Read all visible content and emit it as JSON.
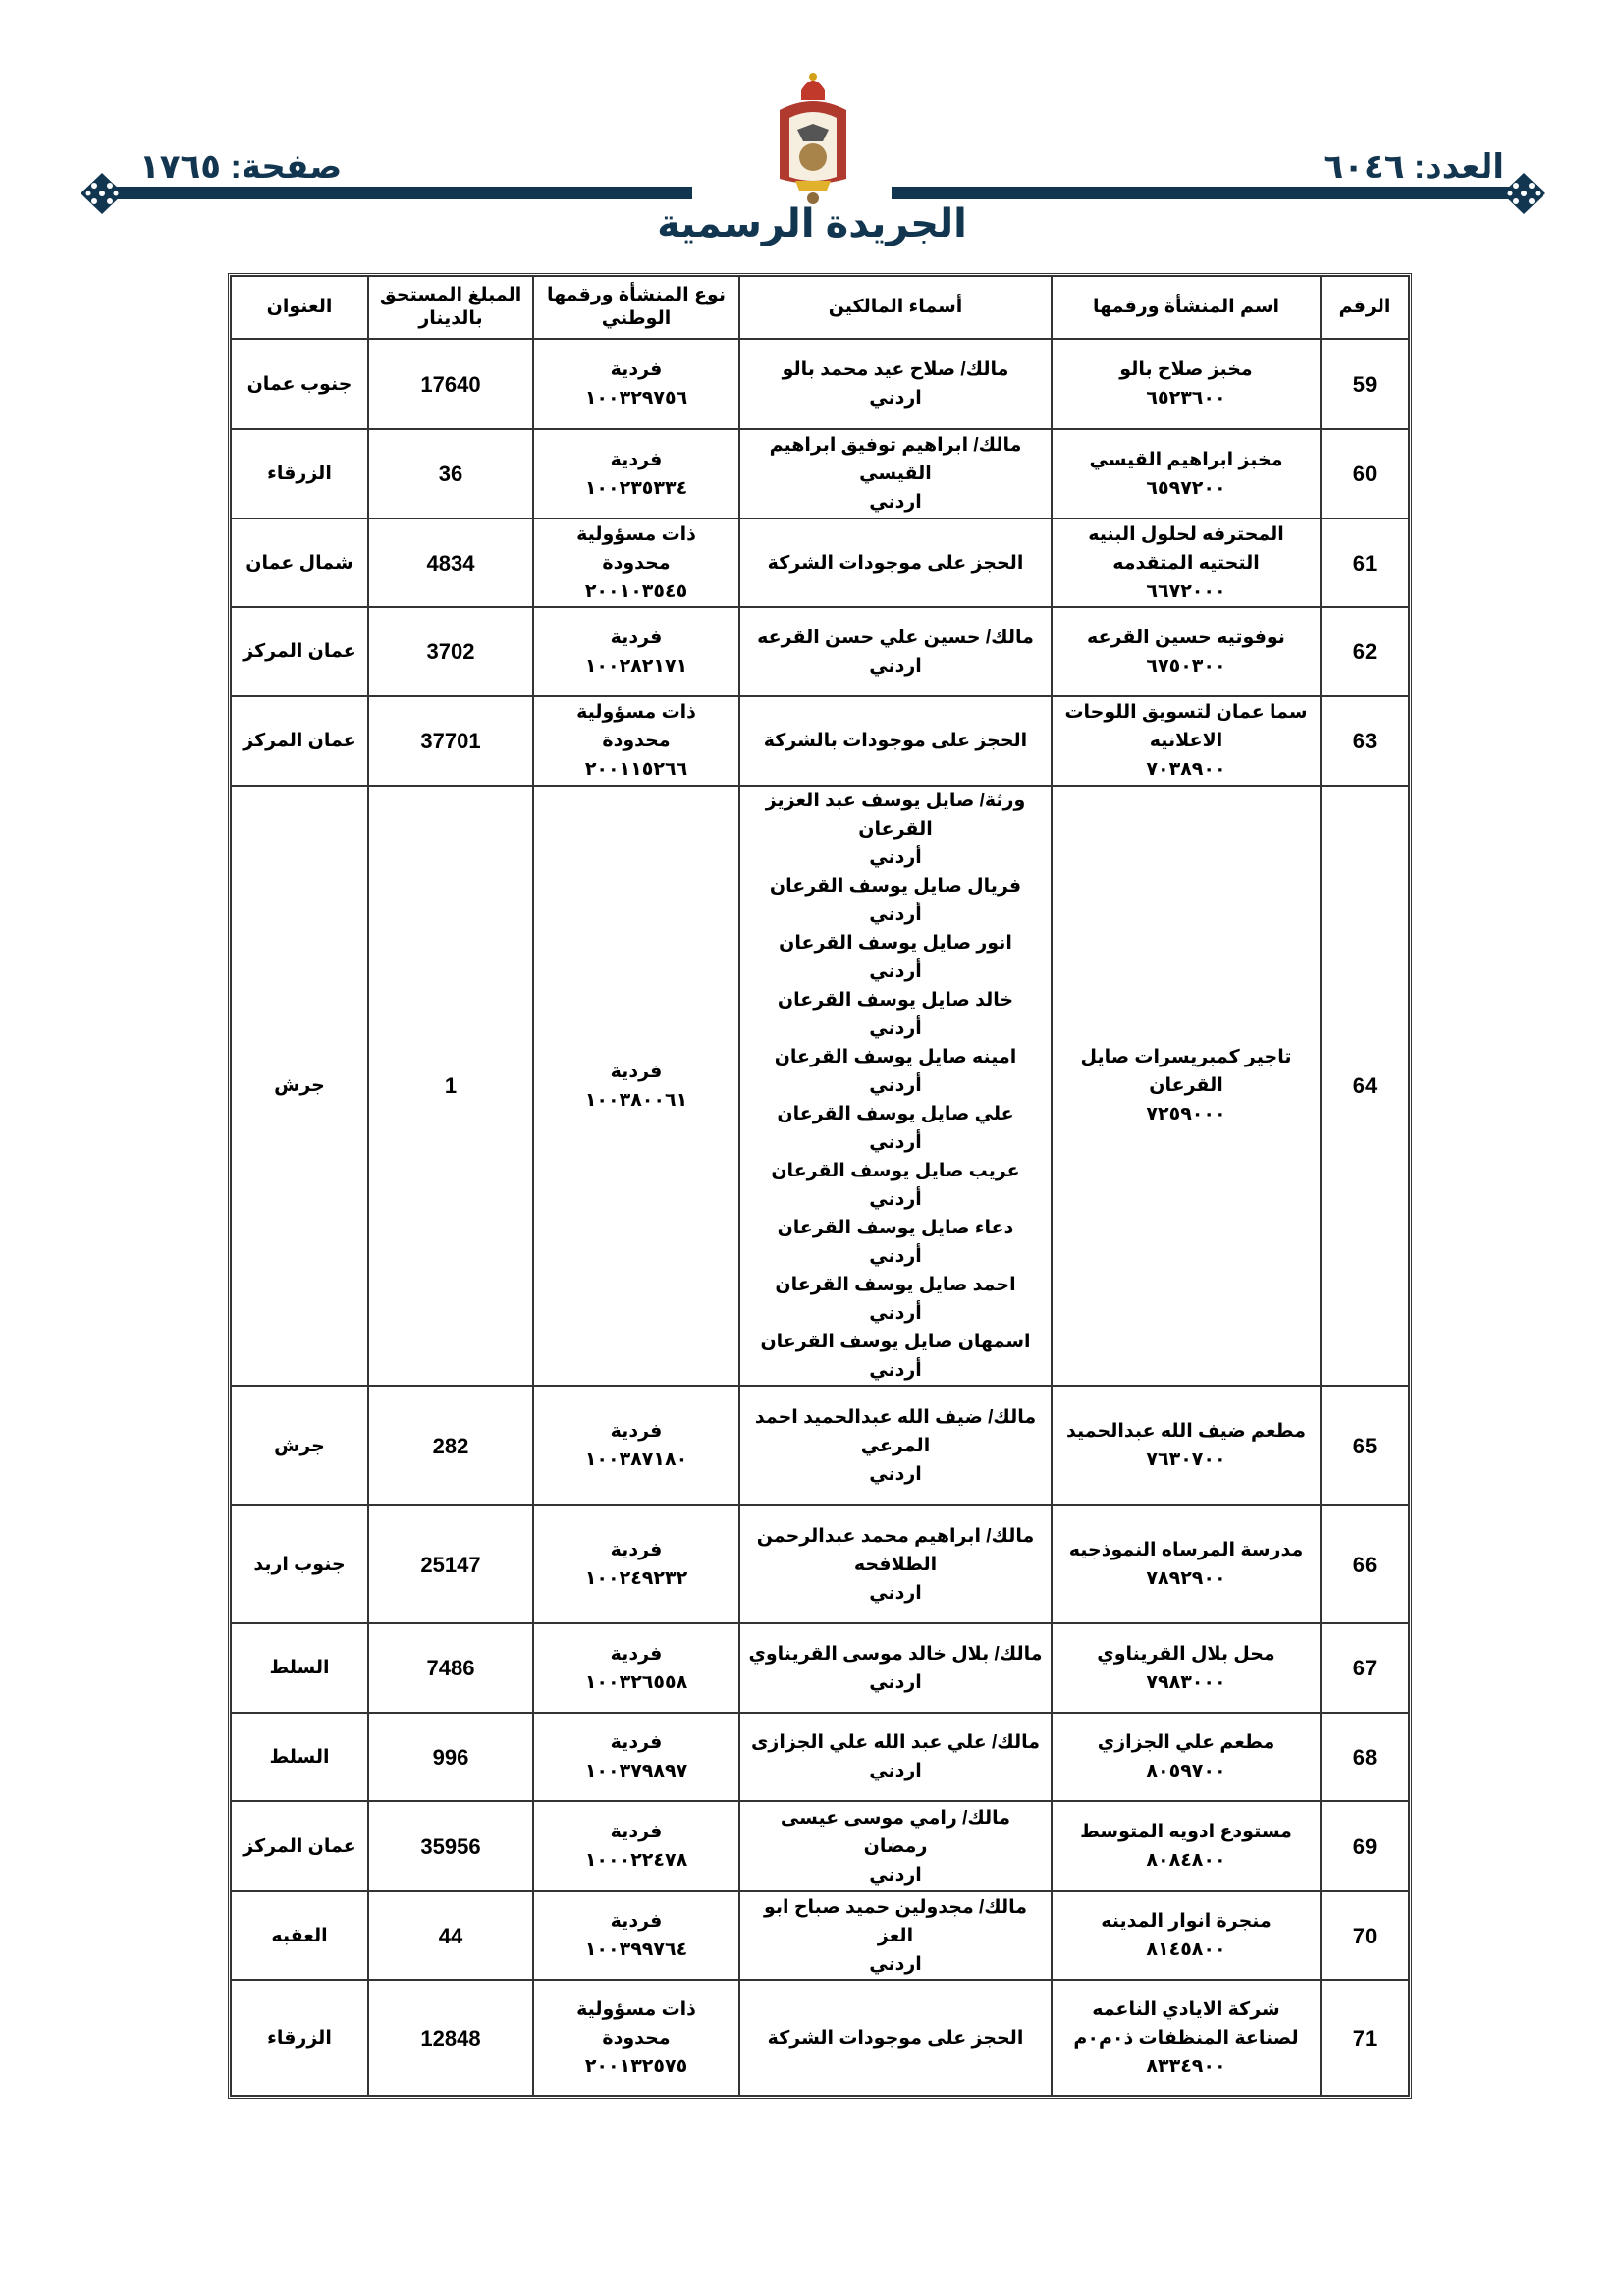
{
  "header": {
    "issue": "العدد: ٦٠٤٦",
    "page": "صفحة: ١٧٦٥",
    "title": "الجريدة الرسمية"
  },
  "colors": {
    "accent": "#123650"
  },
  "table": {
    "columns": [
      "الرقم",
      "اسم المنشأة ورقمها",
      "أسماء المالكين",
      "نوع المنشأة ورقمها الوطني",
      "المبلغ المستحق بالدينار",
      "العنوان"
    ],
    "rows": [
      {
        "no": "59",
        "name": "مخبز صلاح بالو\n٦٥٢٣٦٠٠",
        "owners": "مالك/ صلاح عيد محمد بالو\nاردني",
        "type": "فردية\n١٠٠٣٢٩٧٥٦",
        "amount": "17640",
        "address": "جنوب عمان"
      },
      {
        "no": "60",
        "name": "مخبز ابراهيم القيسي\n٦٥٩٧٢٠٠",
        "owners": "مالك/ ابراهيم توفيق ابراهيم القيسي\nاردني",
        "type": "فردية\n١٠٠٢٣٥٣٣٤",
        "amount": "36",
        "address": "الزرقاء"
      },
      {
        "no": "61",
        "name": "المحترفه لحلول البنيه التحتيه المتقدمه\n٦٦٧٢٠٠٠",
        "owners": "الحجز على موجودات الشركة",
        "type": "ذات مسؤولية محدودة\n٢٠٠١٠٣٥٤٥",
        "amount": "4834",
        "address": "شمال عمان"
      },
      {
        "no": "62",
        "name": "نوفوتيه حسين القرعه\n٦٧٥٠٣٠٠",
        "owners": "مالك/ حسين علي حسن القرعه\nاردني",
        "type": "فردية\n١٠٠٢٨٢١٧١",
        "amount": "3702",
        "address": "عمان المركز"
      },
      {
        "no": "63",
        "name": "سما عمان لتسويق اللوحات الاعلانيه\n٧٠٣٨٩٠٠",
        "owners": "الحجز على موجودات بالشركة",
        "type": "ذات مسؤولية محدودة\n٢٠٠١١٥٢٦٦",
        "amount": "37701",
        "address": "عمان المركز"
      },
      {
        "no": "64",
        "name": "تاجير كمبريسرات صايل القرعان\n٧٢٥٩٠٠٠",
        "owners": "ورثة/ صايل يوسف عبد العزيز القرعان\nأردني\nفريال صايل يوسف القرعان\nأردني\nانور صايل يوسف القرعان\nأردني\nخالد صايل يوسف القرعان\nأردني\nامينه صايل يوسف القرعان\nأردني\nعلي صايل يوسف القرعان\nأردني\nعريب صايل يوسف القرعان\nأردني\nدعاء صايل يوسف القرعان\nأردني\nاحمد صايل يوسف القرعان\nأردني\nاسمهان صايل يوسف القرعان\nأردني",
        "type": "فردية\n١٠٠٣٨٠٠٦١",
        "amount": "1",
        "address": "جرش"
      },
      {
        "no": "65",
        "name": "مطعم ضيف الله عبدالحميد\n٧٦٣٠٧٠٠",
        "owners": "مالك/ ضيف الله عبدالحميد احمد المرعي\nاردني",
        "type": "فردية\n١٠٠٣٨٧١٨٠",
        "amount": "282",
        "address": "جرش"
      },
      {
        "no": "66",
        "name": "مدرسة المرساه النموذجيه\n٧٨٩٢٩٠٠",
        "owners": "مالك/ ابراهيم محمد عبدالرحمن الطلافحه\nاردني",
        "type": "فردية\n١٠٠٢٤٩٢٣٢",
        "amount": "25147",
        "address": "جنوب اربد"
      },
      {
        "no": "67",
        "name": "محل بلال القريناوي\n٧٩٨٣٠٠٠",
        "owners": "مالك/ بلال خالد موسى القريناوي\nاردني",
        "type": "فردية\n١٠٠٣٢٦٥٥٨",
        "amount": "7486",
        "address": "السلط"
      },
      {
        "no": "68",
        "name": "مطعم علي الجزازي\n٨٠٥٩٧٠٠",
        "owners": "مالك/ علي عبد الله علي الجزازى\nاردني",
        "type": "فردية\n١٠٠٣٧٩٨٩٧",
        "amount": "996",
        "address": "السلط"
      },
      {
        "no": "69",
        "name": "مستودع ادويه المتوسط\n٨٠٨٤٨٠٠",
        "owners": "مالك/ رامي موسى عيسى رمضان\nاردني",
        "type": "فردية\n١٠٠٠٢٢٤٧٨",
        "amount": "35956",
        "address": "عمان المركز"
      },
      {
        "no": "70",
        "name": "منجرة انوار المدينه\n٨١٤٥٨٠٠",
        "owners": "مالك/ مجدولين حميد صباح ابو العز\nاردني",
        "type": "فردية\n١٠٠٣٩٩٧٦٤",
        "amount": "44",
        "address": "العقبه"
      },
      {
        "no": "71",
        "name": "شركة الايادي الناعمه لصناعة المنظفات ذ٠م٠م\n٨٣٣٤٩٠٠",
        "owners": "الحجز على موجودات الشركة",
        "type": "ذات مسؤولية محدودة\n٢٠٠١٣٢٥٧٥",
        "amount": "12848",
        "address": "الزرقاء"
      }
    ]
  }
}
